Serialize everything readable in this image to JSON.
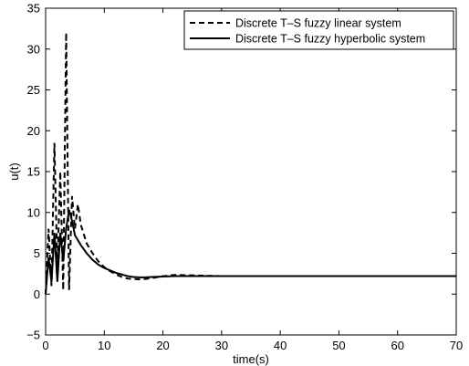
{
  "chart_data": {
    "type": "line",
    "xlabel": "time(s)",
    "ylabel": "u(t)",
    "xlim": [
      0,
      70
    ],
    "ylim": [
      -5,
      35
    ],
    "xticks": [
      0,
      10,
      20,
      30,
      40,
      50,
      60,
      70
    ],
    "yticks": [
      -5,
      0,
      5,
      10,
      15,
      20,
      25,
      30,
      35
    ],
    "grid": false,
    "legend_position": "top-right",
    "series": [
      {
        "name": "Discrete T–S fuzzy linear system",
        "style": "dashed",
        "color": "#000000",
        "x": [
          0,
          0.5,
          1,
          1.5,
          2,
          2.5,
          3,
          3.5,
          4,
          4.5,
          5,
          5.5,
          6,
          7,
          8,
          9,
          10,
          11,
          12,
          13,
          14,
          15,
          16,
          17,
          18,
          20,
          22,
          25,
          30,
          35,
          40,
          50,
          60,
          70
        ],
        "y": [
          0,
          8,
          1,
          18.5,
          3,
          15,
          0.5,
          32,
          0.5,
          12,
          8,
          11,
          8.5,
          6.2,
          5,
          4,
          3.3,
          2.8,
          2.4,
          2.1,
          1.9,
          1.85,
          1.8,
          1.85,
          1.95,
          2.2,
          2.35,
          2.3,
          2.2,
          2.2,
          2.2,
          2.2,
          2.2,
          2.2
        ]
      },
      {
        "name": "Discrete T–S fuzzy hyperbolic system",
        "style": "solid",
        "color": "#000000",
        "x": [
          0,
          0.5,
          1,
          1.5,
          2,
          2.5,
          3,
          3.5,
          4,
          4.5,
          5,
          6,
          7,
          8,
          9,
          10,
          11,
          12,
          13,
          14,
          15,
          16,
          17,
          18,
          20,
          22,
          25,
          30,
          35,
          40,
          50,
          60,
          70
        ],
        "y": [
          0,
          4.5,
          1.5,
          7.5,
          1.5,
          7.5,
          4,
          8,
          10.3,
          9,
          7.2,
          6,
          5,
          4.2,
          3.6,
          3.2,
          2.9,
          2.6,
          2.4,
          2.2,
          2.1,
          2.05,
          2.05,
          2.1,
          2.15,
          2.2,
          2.2,
          2.2,
          2.2,
          2.2,
          2.2,
          2.2,
          2.2
        ]
      }
    ]
  }
}
